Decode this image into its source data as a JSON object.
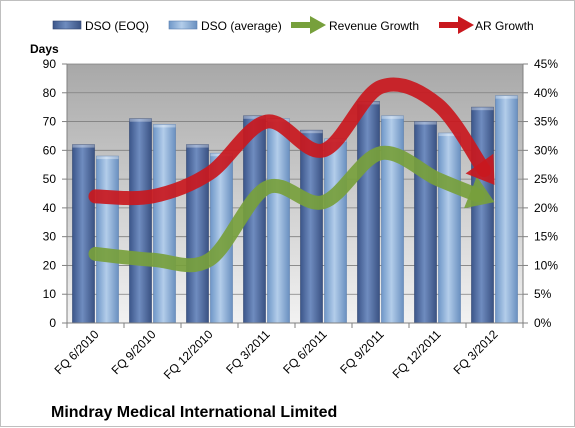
{
  "chart_data": {
    "type": "bar",
    "title": "Mindray Medical International Limited",
    "ylabel": "Days",
    "y2label": "",
    "xlabel": "",
    "ylim": [
      0,
      90
    ],
    "y2lim": [
      0,
      45
    ],
    "yticks": [
      0,
      10,
      20,
      30,
      40,
      50,
      60,
      70,
      80,
      90
    ],
    "y2ticks": [
      "0%",
      "5%",
      "10%",
      "15%",
      "20%",
      "25%",
      "30%",
      "35%",
      "40%",
      "45%"
    ],
    "grid": true,
    "legend_position": "top",
    "categories": [
      "FQ 6/2010",
      "FQ 9/2010",
      "FQ 12/2010",
      "FQ 3/2011",
      "FQ 6/2011",
      "FQ 9/2011",
      "FQ 12/2011",
      "FQ 3/2012"
    ],
    "series": [
      {
        "name": "DSO (EOQ)",
        "kind": "bar",
        "axis": "left",
        "color": "#4f6b9c",
        "values": [
          62,
          71,
          62,
          72,
          67,
          77,
          70,
          75
        ]
      },
      {
        "name": "DSO (average)",
        "kind": "bar",
        "axis": "left",
        "color": "#8eb2dc",
        "values": [
          58,
          69,
          59,
          71,
          64,
          72,
          66,
          79
        ]
      },
      {
        "name": "Revenue Growth",
        "kind": "arrow-line",
        "axis": "right",
        "color": "#77a03c",
        "values": [
          12,
          11,
          11,
          23.5,
          21,
          29.5,
          25,
          21
        ]
      },
      {
        "name": "AR Growth",
        "kind": "arrow-line",
        "axis": "right",
        "color": "#c9181e",
        "values": [
          22,
          22,
          26,
          35,
          30,
          41,
          38,
          24
        ]
      }
    ]
  }
}
